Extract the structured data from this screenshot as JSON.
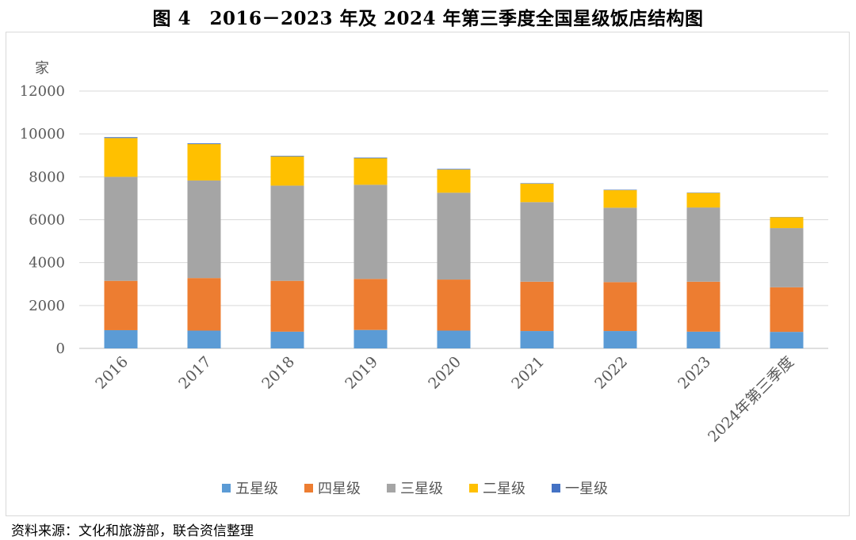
{
  "title": "图 4　2016－2023 年及 2024 年第三季度全国星级饭店结构图",
  "source": "资料来源：文化和旅游部，联合资信整理",
  "chart_data": {
    "type": "bar",
    "stacked": true,
    "unit_label": "家",
    "categories": [
      "2016",
      "2017",
      "2018",
      "2019",
      "2020",
      "2021",
      "2022",
      "2023",
      "2024年第三季度"
    ],
    "ylim": [
      0,
      12000
    ],
    "yticks": [
      0,
      2000,
      4000,
      6000,
      8000,
      10000,
      12000
    ],
    "grid": true,
    "legend_position": "bottom",
    "series": [
      {
        "name": "五星级",
        "color": "#5b9bd5",
        "values": [
          850,
          830,
          780,
          860,
          830,
          810,
          810,
          780,
          770
        ]
      },
      {
        "name": "四星级",
        "color": "#ed7d31",
        "values": [
          2300,
          2450,
          2370,
          2380,
          2380,
          2300,
          2280,
          2330,
          2080
        ]
      },
      {
        "name": "三星级",
        "color": "#a5a5a5",
        "values": [
          4850,
          4550,
          4440,
          4390,
          4050,
          3710,
          3470,
          3460,
          2760
        ]
      },
      {
        "name": "二星级",
        "color": "#ffc000",
        "values": [
          1810,
          1700,
          1360,
          1240,
          1080,
          860,
          820,
          680,
          510
        ]
      },
      {
        "name": "一星级",
        "color": "#4472c4",
        "values": [
          40,
          35,
          30,
          30,
          30,
          20,
          20,
          15,
          10
        ]
      }
    ]
  }
}
